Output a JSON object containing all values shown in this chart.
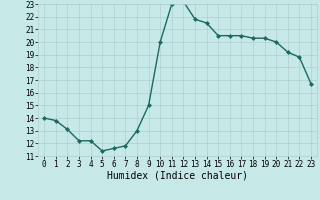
{
  "title": "",
  "xlabel": "Humidex (Indice chaleur)",
  "ylabel": "",
  "x": [
    0,
    1,
    2,
    3,
    4,
    5,
    6,
    7,
    8,
    9,
    10,
    11,
    12,
    13,
    14,
    15,
    16,
    17,
    18,
    19,
    20,
    21,
    22,
    23
  ],
  "y": [
    14.0,
    13.8,
    13.1,
    12.2,
    12.2,
    11.4,
    11.6,
    11.8,
    13.0,
    15.0,
    20.0,
    23.0,
    23.2,
    21.8,
    21.5,
    20.5,
    20.5,
    20.5,
    20.3,
    20.3,
    20.0,
    19.2,
    18.8,
    16.7
  ],
  "line_color": "#1a6b5e",
  "marker": "D",
  "marker_size": 2.0,
  "bg_color": "#c6e8e6",
  "grid_color": "#b0d0ce",
  "ylim": [
    11,
    23
  ],
  "xlim": [
    -0.5,
    23.5
  ],
  "yticks": [
    11,
    12,
    13,
    14,
    15,
    16,
    17,
    18,
    19,
    20,
    21,
    22,
    23
  ],
  "xticks": [
    0,
    1,
    2,
    3,
    4,
    5,
    6,
    7,
    8,
    9,
    10,
    11,
    12,
    13,
    14,
    15,
    16,
    17,
    18,
    19,
    20,
    21,
    22,
    23
  ],
  "tick_fontsize": 5.5,
  "xlabel_fontsize": 7.0,
  "line_width": 1.0
}
